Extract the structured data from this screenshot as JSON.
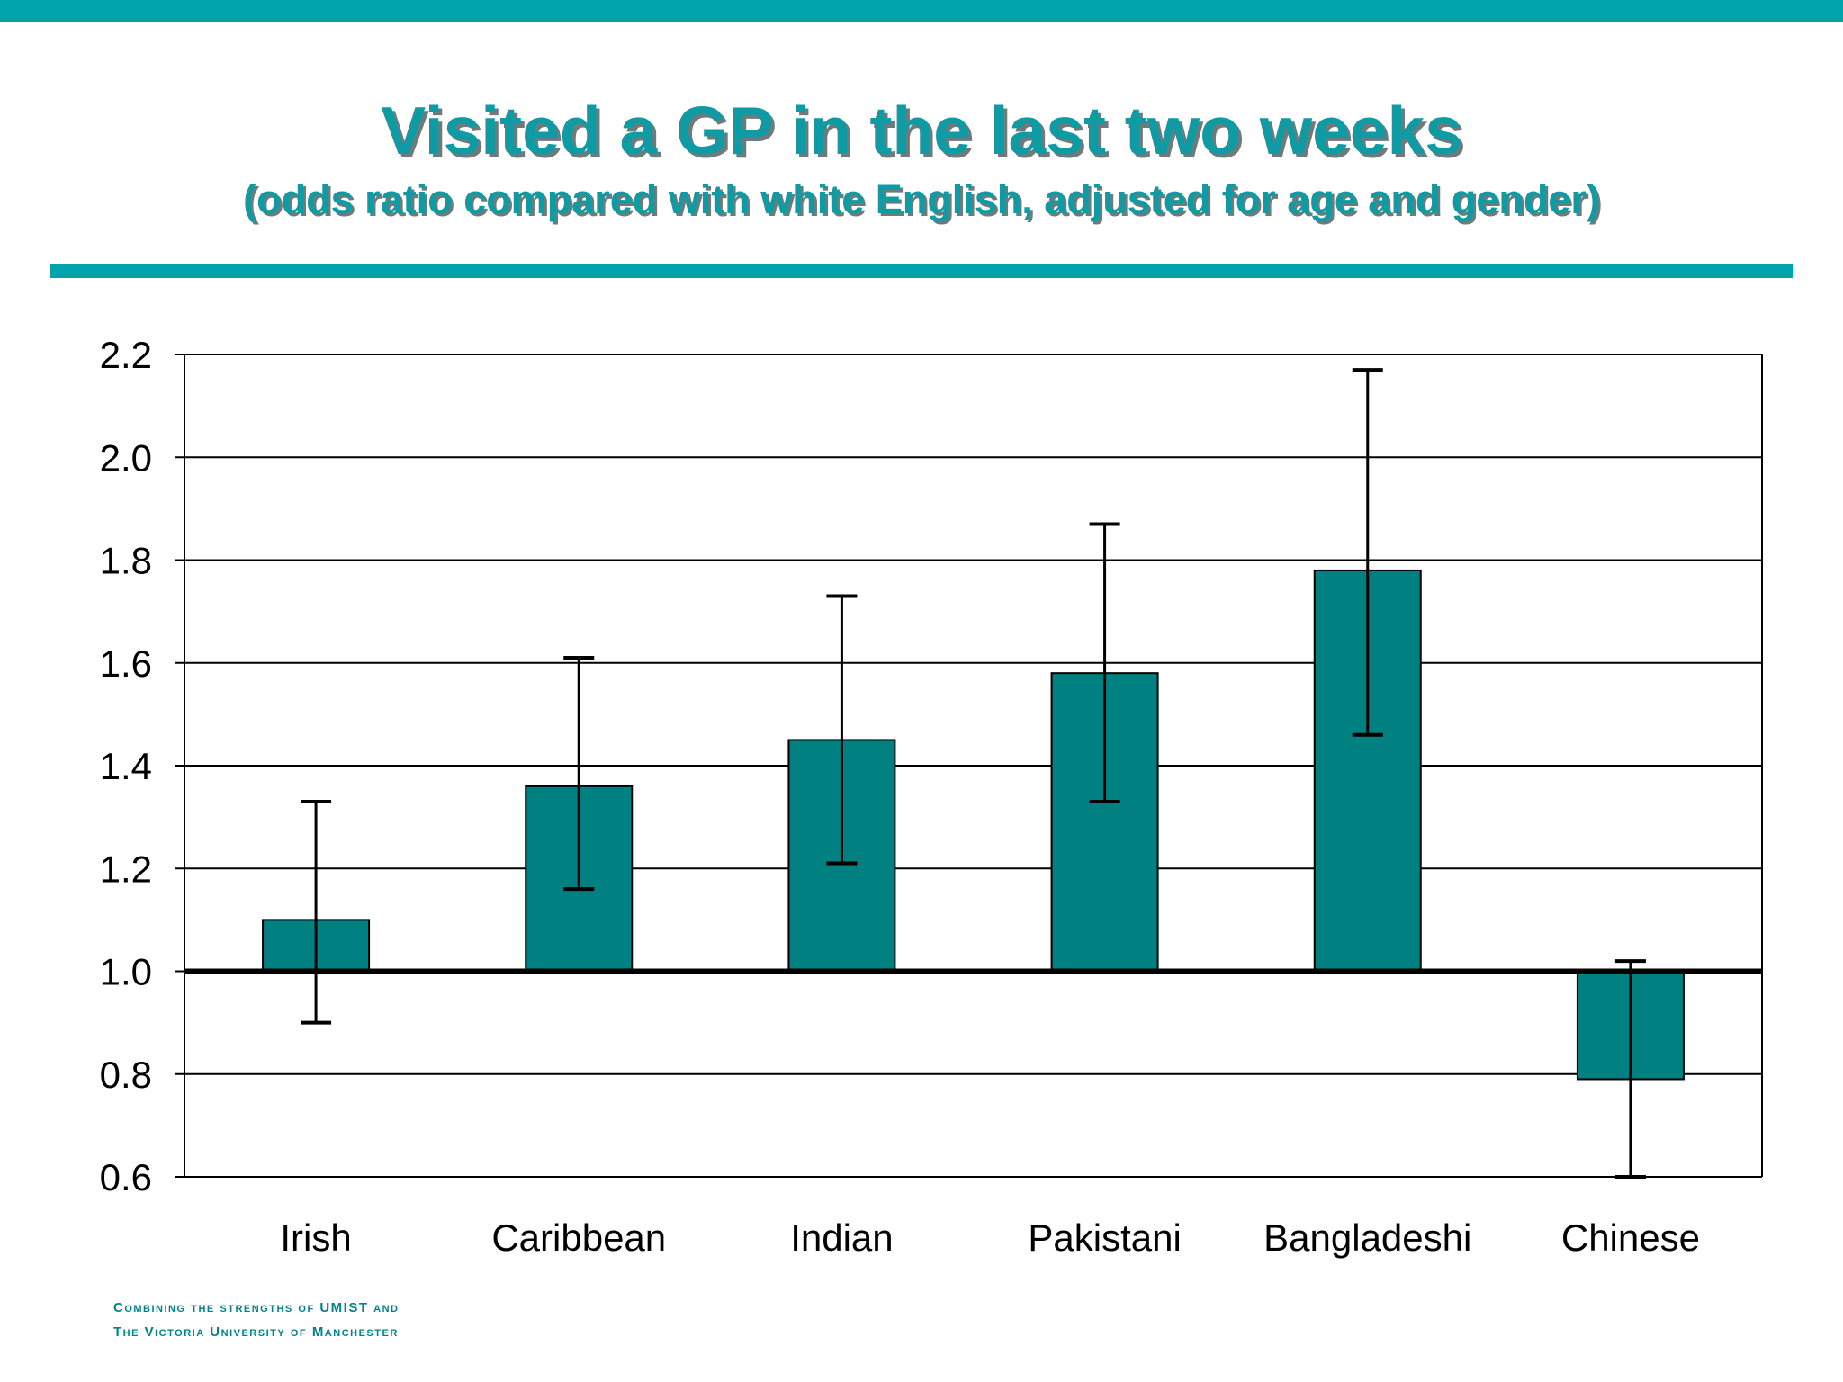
{
  "slide": {
    "title": "Visited a GP in the last two weeks",
    "subtitle": "(odds ratio compared with white English, adjusted for age and gender)",
    "footer_line1": "Combining the strengths of UMIST and",
    "footer_line2": "The Victoria University of Manchester"
  },
  "colors": {
    "accent_bar": "#00A3AC",
    "title_text": "#0E9BA4",
    "bar_fill": "#008080",
    "footer_text": "#00828B"
  },
  "chart_data": {
    "type": "bar",
    "title": "",
    "xlabel": "",
    "ylabel": "",
    "baseline": 1.0,
    "ylim": [
      0.6,
      2.2
    ],
    "yticks": [
      "0.6",
      "0.8",
      "1.0",
      "1.2",
      "1.4",
      "1.6",
      "1.8",
      "2.0",
      "2.2"
    ],
    "grid": true,
    "categories": [
      "Irish",
      "Caribbean",
      "Indian",
      "Pakistani",
      "Bangladeshi",
      "Chinese"
    ],
    "values": [
      1.1,
      1.36,
      1.45,
      1.58,
      1.78,
      0.79
    ],
    "error_low": [
      0.9,
      1.16,
      1.21,
      1.33,
      1.46,
      0.6
    ],
    "error_high": [
      1.33,
      1.61,
      1.73,
      1.87,
      2.17,
      1.02
    ]
  }
}
